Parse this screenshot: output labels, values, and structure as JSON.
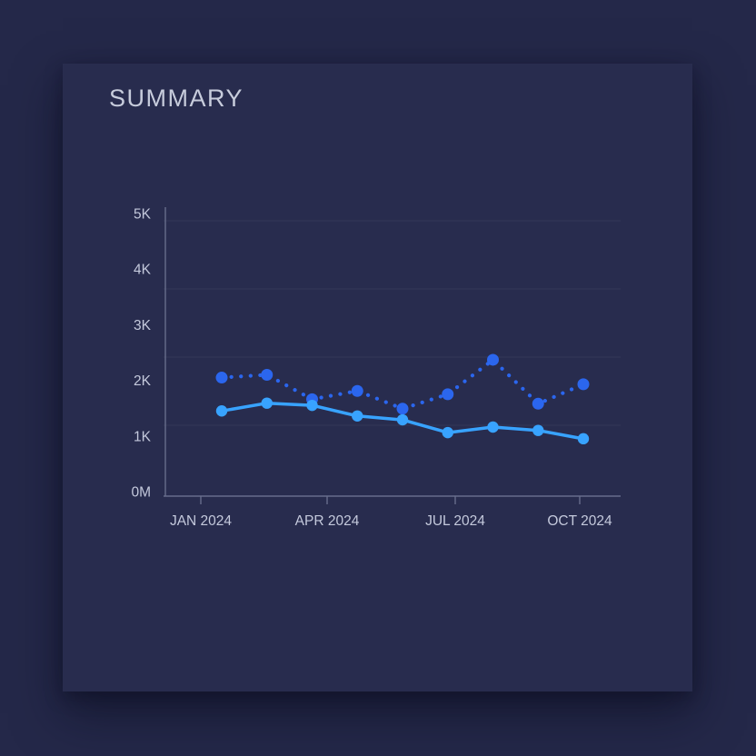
{
  "page": {
    "title": "SUMMARY"
  },
  "chart_data": {
    "type": "line",
    "title": "SUMMARY",
    "legend": "none",
    "grid": "faint horizontal lines",
    "background_color": "#282c4e",
    "axis_color": "#676d8c",
    "label_color": "#c4c9dc",
    "xlabel": "",
    "ylabel": "",
    "ylim": [
      0,
      5200
    ],
    "y_axis": {
      "tick_labels": [
        "5K",
        "4K",
        "3K",
        "2K",
        "1K",
        "0M"
      ],
      "tick_values": [
        5000,
        4000,
        3000,
        2000,
        1000,
        0
      ]
    },
    "x_axis": {
      "tick_labels": [
        "JAN 2024",
        "APR 2024",
        "JUL 2024",
        "OCT 2024"
      ]
    },
    "series": [
      {
        "name": "dotted-series",
        "style": "dotted",
        "color": "#2b66ee",
        "marker": "circle",
        "values": [
          2050,
          2100,
          1660,
          1810,
          1490,
          1750,
          2370,
          1580,
          1930
        ]
      },
      {
        "name": "solid-series",
        "style": "solid",
        "color": "#38a3ff",
        "marker": "circle",
        "values": [
          1450,
          1590,
          1550,
          1360,
          1290,
          1060,
          1160,
          1100,
          950
        ]
      }
    ]
  }
}
